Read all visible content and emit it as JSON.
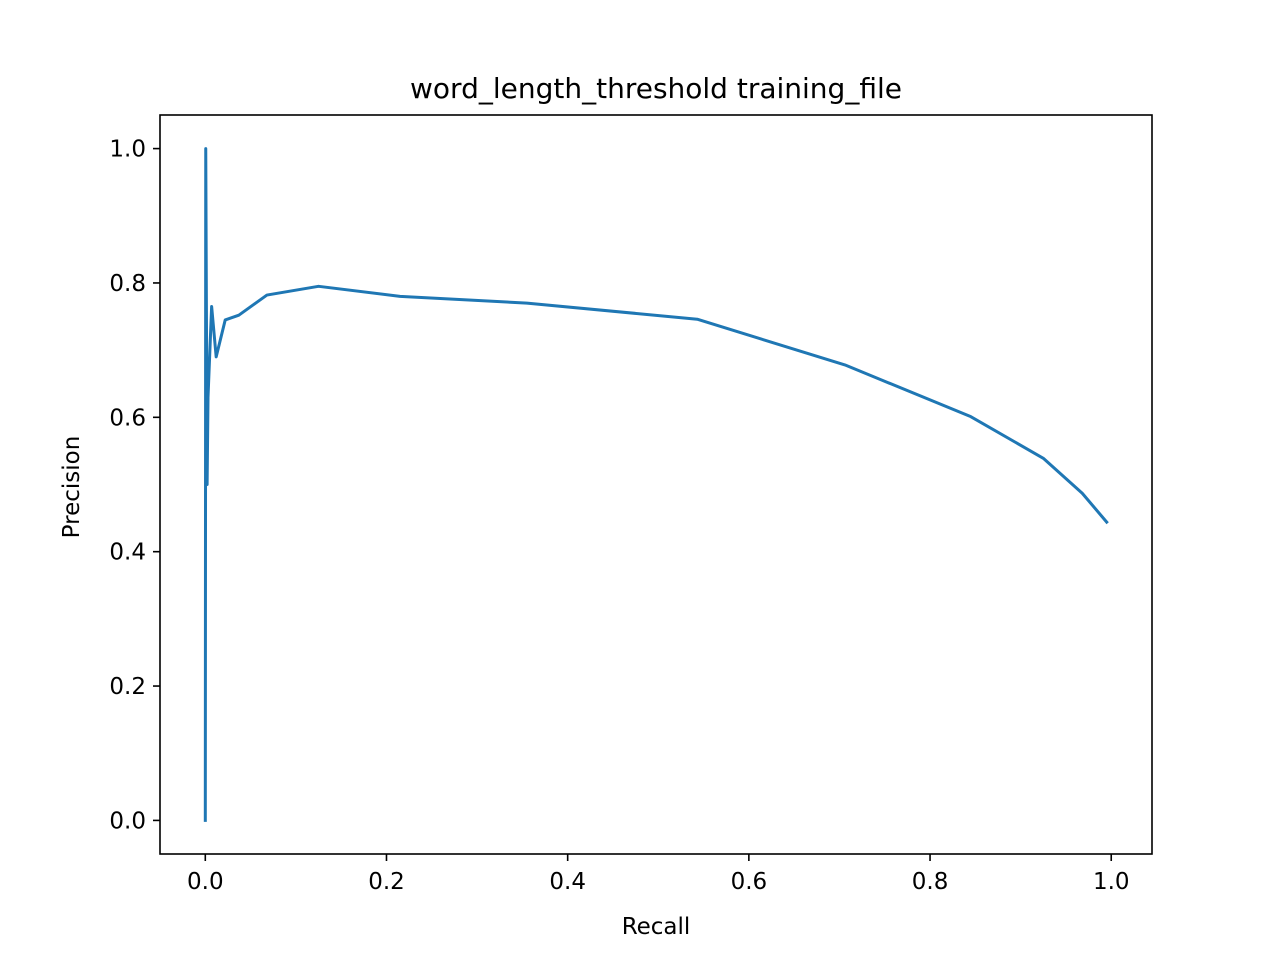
{
  "chart_data": {
    "type": "line",
    "title": "word_length_threshold training_file",
    "xlabel": "Recall",
    "ylabel": "Precision",
    "xlim": [
      -0.05,
      1.045
    ],
    "ylim": [
      -0.05,
      1.05
    ],
    "grid": false,
    "xticks": [
      "0.0",
      "0.2",
      "0.4",
      "0.6",
      "0.8",
      "1.0"
    ],
    "yticks": [
      "0.0",
      "0.2",
      "0.4",
      "0.6",
      "0.8",
      "1.0"
    ],
    "xtick_values": [
      0.0,
      0.2,
      0.4,
      0.6,
      0.8,
      1.0
    ],
    "ytick_values": [
      0.0,
      0.2,
      0.4,
      0.6,
      0.8,
      1.0
    ],
    "series": [
      {
        "color": "#1f77b4",
        "x": [
          0.0,
          0.0005,
          0.002,
          0.003,
          0.007,
          0.012,
          0.022,
          0.037,
          0.068,
          0.125,
          0.215,
          0.355,
          0.543,
          0.706,
          0.845,
          0.925,
          0.968,
          0.995
        ],
        "y": [
          0.0,
          1.0,
          0.5,
          0.63,
          0.765,
          0.69,
          0.745,
          0.752,
          0.782,
          0.795,
          0.78,
          0.77,
          0.746,
          0.678,
          0.601,
          0.539,
          0.487,
          0.444
        ]
      }
    ]
  }
}
